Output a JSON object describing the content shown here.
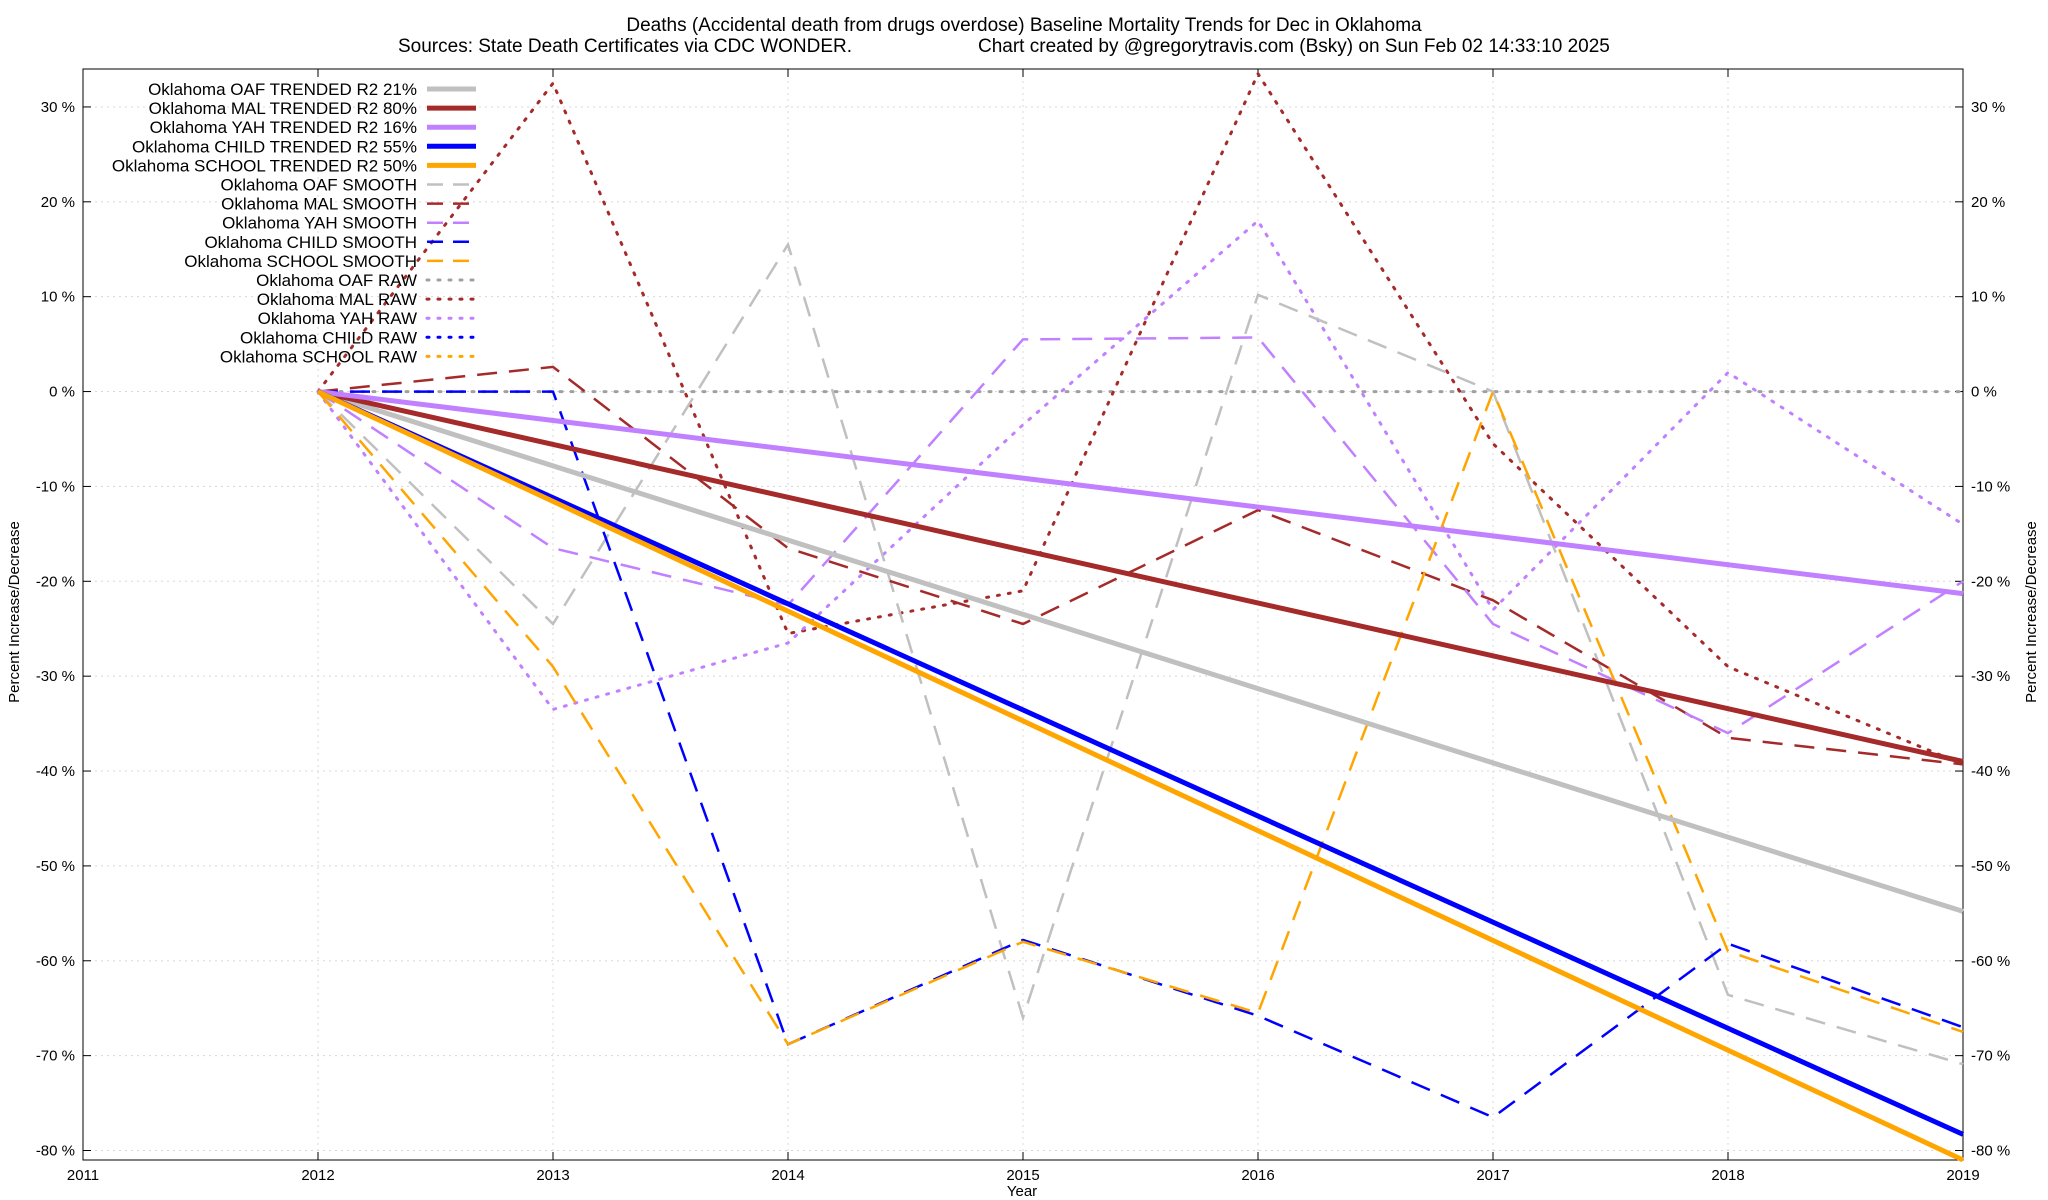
{
  "chart_data": {
    "type": "line",
    "title": "Deaths (Accidental death from drugs overdose)  Baseline Mortality Trends for Dec in Oklahoma",
    "subtitle_left": "Sources: State Death Certificates via CDC WONDER.",
    "subtitle_right": "Chart created by @gregorytravis.com (Bsky) on Sun Feb 02 14:33:10 2025",
    "xlabel": "Year",
    "ylabel_left": "Percent Increase/Decrease",
    "ylabel_right": "Percent Increase/Decrease",
    "xlim": [
      2011,
      2019
    ],
    "ylim": [
      -81,
      34
    ],
    "x_ticks": [
      2011,
      2012,
      2013,
      2014,
      2015,
      2016,
      2017,
      2018,
      2019
    ],
    "x_tick_labels": [
      "2011",
      "2012",
      "2013",
      "2014",
      "2015",
      "2016",
      "2017",
      "2018",
      "2019"
    ],
    "y_ticks": [
      30,
      20,
      10,
      0,
      -10,
      -20,
      -30,
      -40,
      -50,
      -60,
      -70,
      -80
    ],
    "y_tick_labels": [
      "30 %",
      "20 %",
      "10 %",
      "0 %",
      "-10 %",
      "-20 %",
      "-30 %",
      "-40 %",
      "-50 %",
      "-60 %",
      "-70 %",
      "-80 %"
    ],
    "grid": true,
    "legend_position": "top-left",
    "series": [
      {
        "name": "Oklahoma OAF TRENDED R2  21%",
        "style": "solid",
        "color": "#c0c0c0",
        "x": [
          2012,
          2019
        ],
        "values": [
          0,
          -54.8
        ]
      },
      {
        "name": "Oklahoma MAL TRENDED R2  80%",
        "style": "solid",
        "color": "#a52a2a",
        "x": [
          2012,
          2019
        ],
        "values": [
          0,
          -39
        ]
      },
      {
        "name": "Oklahoma YAH TRENDED R2  16%",
        "style": "solid",
        "color": "#c080ff",
        "x": [
          2012,
          2019
        ],
        "values": [
          0,
          -21.3
        ]
      },
      {
        "name": "Oklahoma CHILD TRENDED R2  55%",
        "style": "solid",
        "color": "#0000ff",
        "x": [
          2012,
          2019
        ],
        "values": [
          0,
          -78.3
        ]
      },
      {
        "name": "Oklahoma SCHOOL TRENDED R2  50%",
        "style": "solid",
        "color": "#ffa500",
        "x": [
          2012,
          2019
        ],
        "values": [
          0,
          -81
        ]
      },
      {
        "name": "Oklahoma OAF SMOOTH",
        "style": "dashed",
        "color": "#c0c0c0",
        "x": [
          2012,
          2013,
          2014,
          2015,
          2016,
          2017,
          2018,
          2019
        ],
        "values": [
          0,
          -24.5,
          15.5,
          -66,
          10.2,
          0,
          -63.6,
          -70.9
        ]
      },
      {
        "name": "Oklahoma MAL SMOOTH",
        "style": "dashed",
        "color": "#a52a2a",
        "x": [
          2012,
          2013,
          2014,
          2015,
          2016,
          2017,
          2018,
          2019
        ],
        "values": [
          0,
          2.6,
          -16.5,
          -24.5,
          -12.5,
          -22,
          -36.5,
          -39.3
        ]
      },
      {
        "name": "Oklahoma YAH SMOOTH",
        "style": "dashed",
        "color": "#c080ff",
        "x": [
          2012,
          2013,
          2014,
          2015,
          2016,
          2017,
          2018,
          2019
        ],
        "values": [
          0,
          -16.5,
          -22.5,
          5.5,
          5.7,
          -24.5,
          -36,
          -20
        ]
      },
      {
        "name": "Oklahoma CHILD SMOOTH",
        "style": "dashed",
        "color": "#0000ff",
        "x": [
          2012,
          2013,
          2014,
          2015,
          2016,
          2017,
          2018,
          2019
        ],
        "values": [
          0,
          0,
          -68.8,
          -57.8,
          -65.8,
          -76.5,
          -58.2,
          -67
        ]
      },
      {
        "name": "Oklahoma SCHOOL SMOOTH",
        "style": "dashed",
        "color": "#ffa500",
        "x": [
          2012,
          2013,
          2014,
          2015,
          2016,
          2017,
          2018,
          2019
        ],
        "values": [
          0,
          -29,
          -68.8,
          -58,
          -65.5,
          0,
          -59,
          -67.5
        ]
      },
      {
        "name": "Oklahoma OAF RAW",
        "style": "dotted",
        "color": "#a0a0a0",
        "x": [
          2012,
          2013,
          2014,
          2015,
          2016,
          2017,
          2018,
          2019
        ],
        "values": [
          0,
          0,
          0,
          0,
          0,
          0,
          0,
          0
        ]
      },
      {
        "name": "Oklahoma MAL RAW",
        "style": "dotted",
        "color": "#a52a2a",
        "x": [
          2012,
          2013,
          2014,
          2015,
          2016,
          2017,
          2018,
          2019
        ],
        "values": [
          0,
          32.5,
          -25.5,
          -21,
          33.5,
          -5.5,
          -29,
          -39.3
        ]
      },
      {
        "name": "Oklahoma YAH RAW",
        "style": "dotted",
        "color": "#c080ff",
        "x": [
          2012,
          2013,
          2014,
          2015,
          2016,
          2017,
          2018,
          2019
        ],
        "values": [
          0,
          -33.5,
          -26.5,
          -3.5,
          18,
          -23,
          2,
          -14
        ]
      },
      {
        "name": "Oklahoma CHILD RAW",
        "style": "dotted",
        "color": "#0000ff",
        "x": [],
        "values": []
      },
      {
        "name": "Oklahoma SCHOOL RAW",
        "style": "dotted",
        "color": "#ffa500",
        "x": [],
        "values": []
      }
    ]
  }
}
